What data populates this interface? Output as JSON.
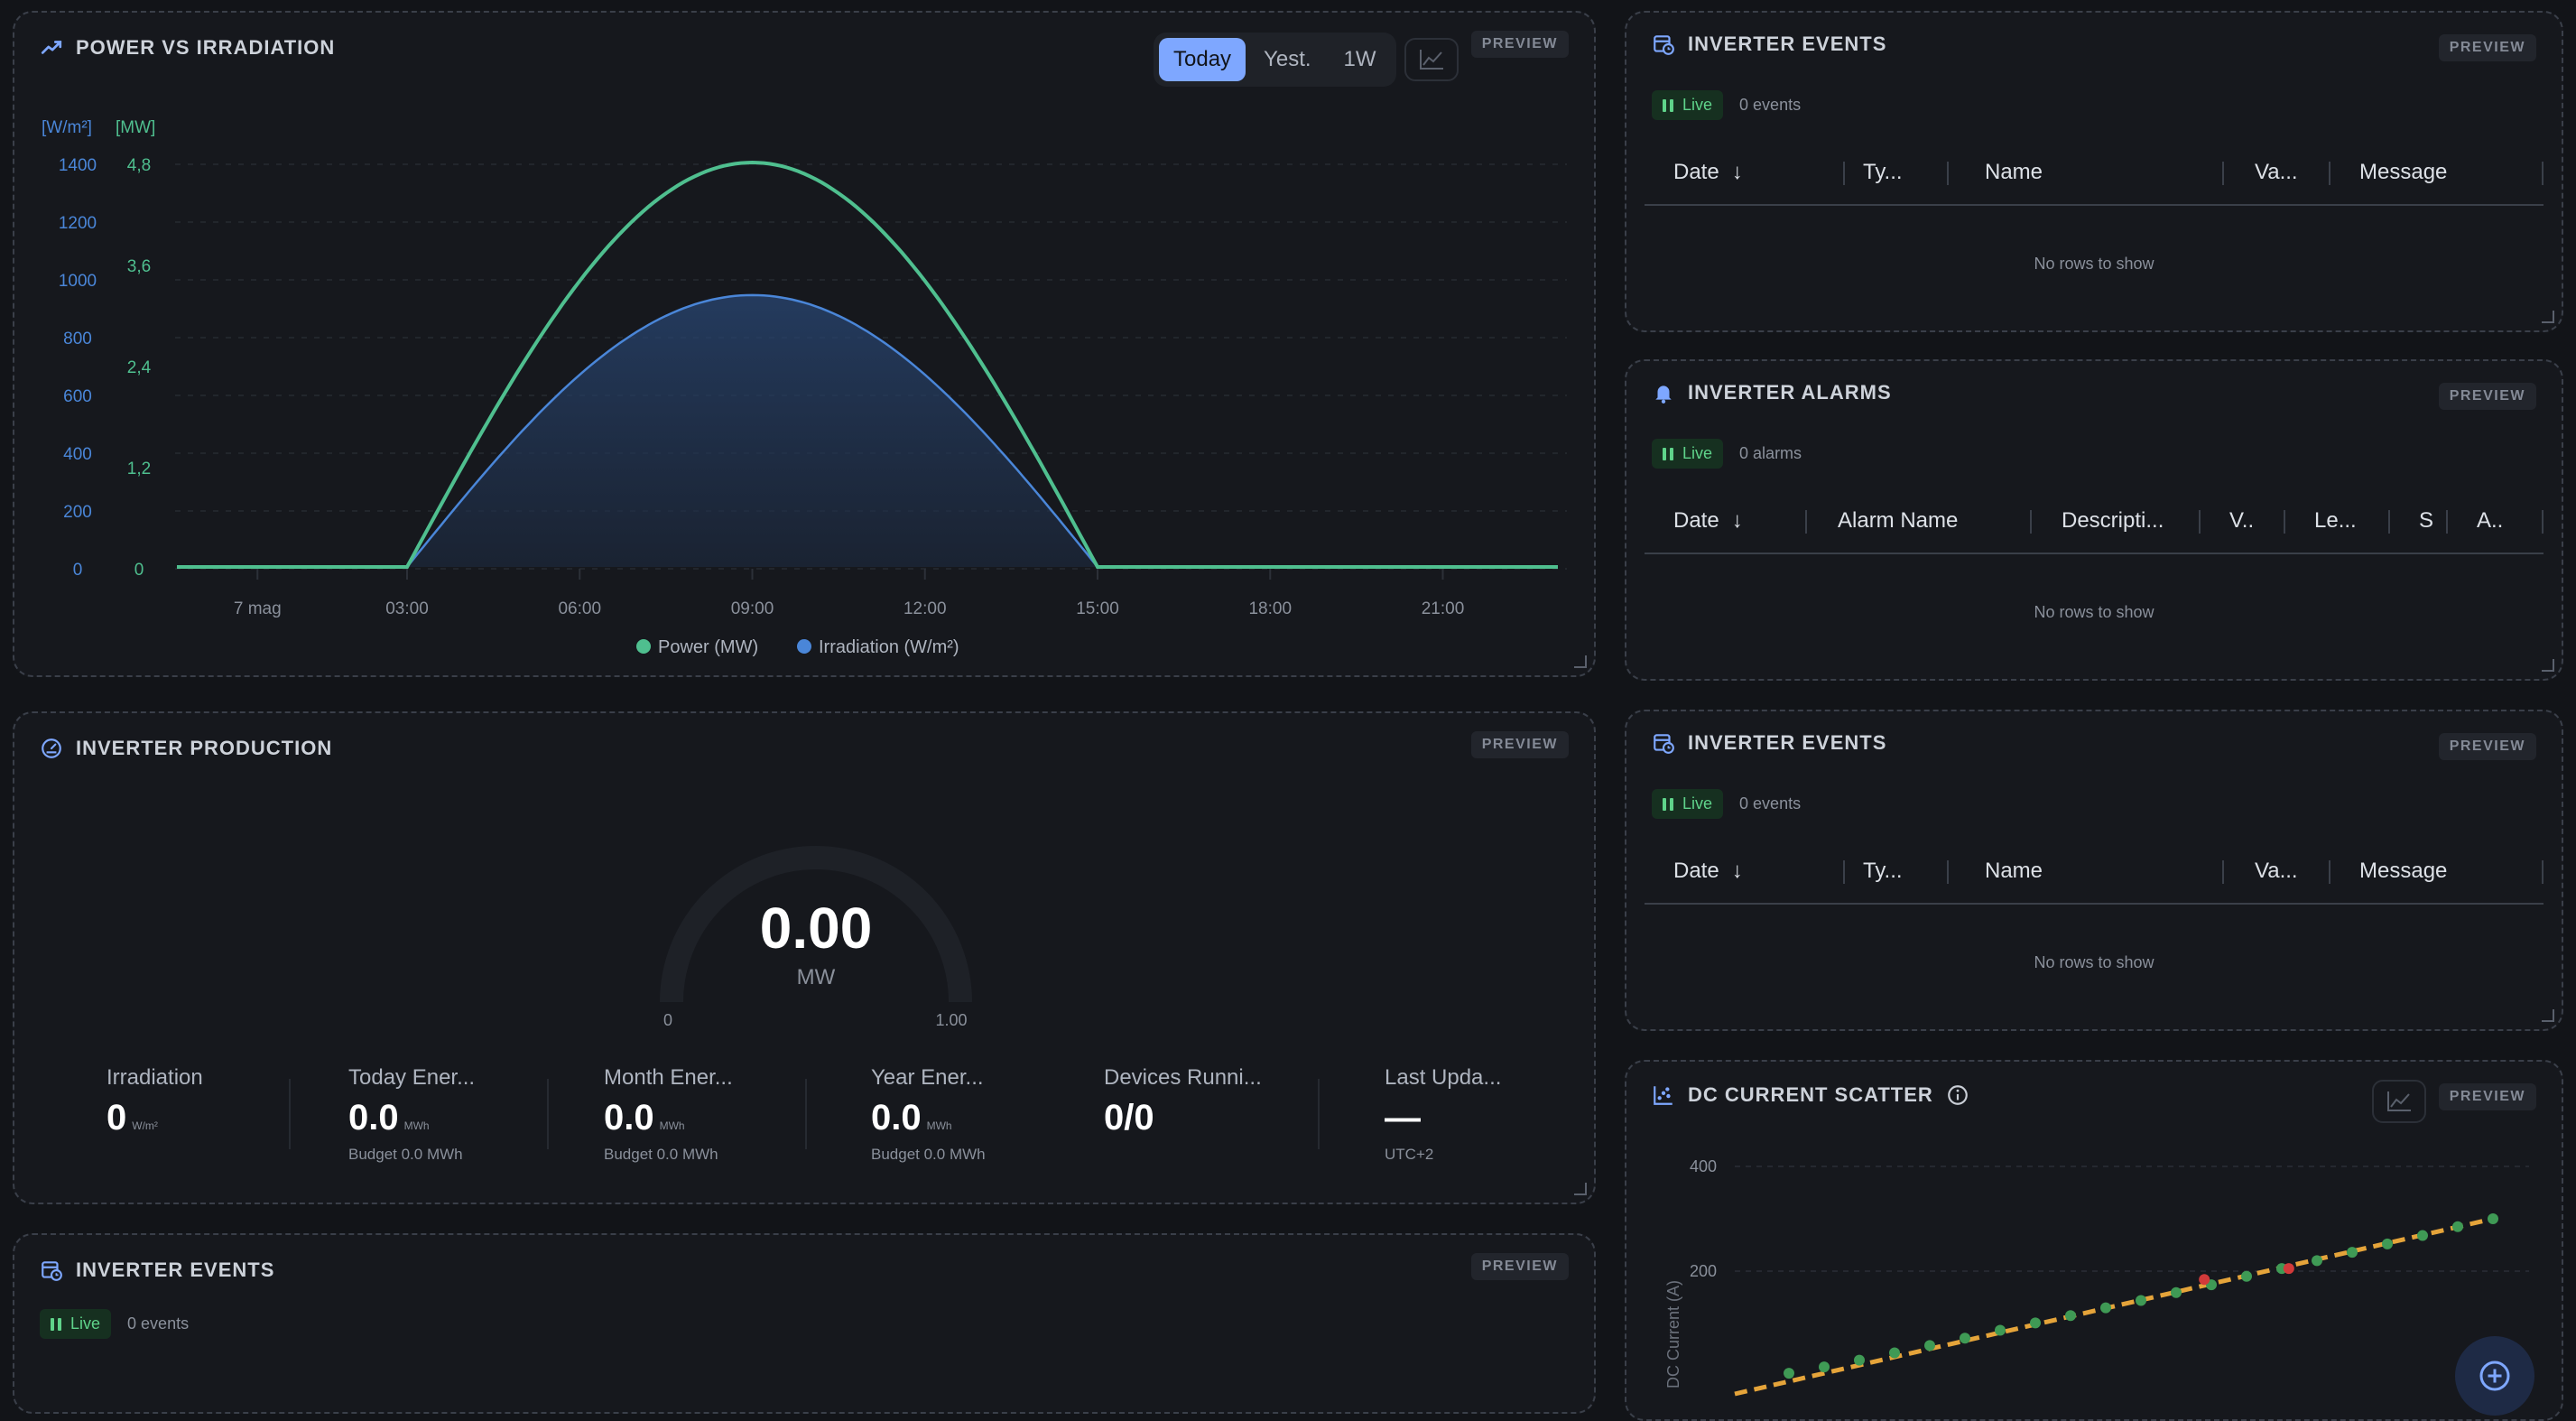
{
  "colors": {
    "accent": "#7ea7ff",
    "power": "#4fbf8f",
    "irradiation": "#4a86d8",
    "live": "#5fd38a"
  },
  "preview_label": "PREVIEW",
  "power_panel": {
    "title": "POWER VS IRRADIATION",
    "tabs": [
      "Today",
      "Yest.",
      "1W"
    ],
    "active_tab": "Today",
    "left_axis_unit": "[W/m²]",
    "right_axis_unit": "[MW]",
    "left_ticks": [
      "1400",
      "1200",
      "1000",
      "800",
      "600",
      "400",
      "200",
      "0"
    ],
    "right_ticks": [
      "4,8",
      "3,6",
      "2,4",
      "1,2",
      "0"
    ],
    "x_ticks": [
      "7 mag",
      "03:00",
      "06:00",
      "09:00",
      "12:00",
      "15:00",
      "18:00",
      "21:00"
    ],
    "legend": [
      "Power (MW)",
      "Irradiation (W/m²)"
    ]
  },
  "chart_data": [
    {
      "type": "line",
      "title": "POWER VS IRRADIATION",
      "x": [
        "00:00",
        "04:00",
        "05:00",
        "06:00",
        "07:00",
        "08:00",
        "09:00",
        "10:00",
        "11:00",
        "12:00",
        "13:00",
        "14:00",
        "15:00",
        "16:00",
        "20:00",
        "24:00"
      ],
      "x_ticks": [
        "7 mag",
        "03:00",
        "06:00",
        "09:00",
        "12:00",
        "15:00",
        "18:00",
        "21:00"
      ],
      "series": [
        {
          "name": "Power (MW)",
          "axis": "right",
          "values": [
            0,
            0,
            1.23,
            2.4,
            3.39,
            4.15,
            4.63,
            4.8,
            4.63,
            4.15,
            3.39,
            2.4,
            1.23,
            0,
            0,
            0
          ]
        },
        {
          "name": "Irradiation (W/m²)",
          "axis": "left",
          "values": [
            0,
            0,
            244,
            470,
            665,
            815,
            909,
            941,
            909,
            815,
            665,
            470,
            244,
            0,
            0,
            0
          ]
        }
      ],
      "ylim_left": [
        0,
        1400
      ],
      "ylim_right": [
        0,
        4.8
      ],
      "grid": true,
      "legend": "bottom"
    },
    {
      "type": "scatter",
      "title": "DC CURRENT SCATTER",
      "ylabel": "DC Current (A)",
      "y_ticks": [
        "400",
        "200"
      ],
      "ylim": [
        0,
        430
      ],
      "normal_points": [
        [
          0.0,
          5
        ],
        [
          0.05,
          17
        ],
        [
          0.1,
          30
        ],
        [
          0.15,
          44
        ],
        [
          0.2,
          58
        ],
        [
          0.25,
          72
        ],
        [
          0.3,
          87
        ],
        [
          0.35,
          101
        ],
        [
          0.4,
          115
        ],
        [
          0.45,
          130
        ],
        [
          0.5,
          144
        ],
        [
          0.55,
          159
        ],
        [
          0.6,
          174
        ],
        [
          0.65,
          190
        ],
        [
          0.7,
          205
        ],
        [
          0.75,
          220
        ],
        [
          0.8,
          236
        ],
        [
          0.85,
          252
        ],
        [
          0.9,
          268
        ],
        [
          0.95,
          285
        ],
        [
          1.0,
          300
        ]
      ],
      "outlier_points": [
        [
          0.59,
          184
        ],
        [
          0.71,
          205
        ]
      ],
      "trend": [
        [
          0.0,
          0
        ],
        [
          1.0,
          300
        ]
      ]
    }
  ],
  "production_panel": {
    "title": "INVERTER PRODUCTION",
    "gauge_value": "0.00",
    "gauge_unit": "MW",
    "gauge_min": "0",
    "gauge_max": "1.00",
    "gauge_fraction": 0,
    "stats": [
      {
        "label": "Irradiation",
        "value": "0",
        "unit": "W/m²",
        "sub": ""
      },
      {
        "label": "Today Ener...",
        "value": "0.0",
        "unit": "MWh",
        "sub": "Budget 0.0 MWh"
      },
      {
        "label": "Month Ener...",
        "value": "0.0",
        "unit": "MWh",
        "sub": "Budget 0.0 MWh"
      },
      {
        "label": "Year Ener...",
        "value": "0.0",
        "unit": "MWh",
        "sub": "Budget 0.0 MWh"
      },
      {
        "label": "Devices Runni...",
        "value": "0/0",
        "unit": "",
        "sub": ""
      },
      {
        "label": "Last Upda...",
        "value": "—",
        "unit": "",
        "sub": "UTC+2"
      }
    ]
  },
  "events_panel_bottom": {
    "title": "INVERTER EVENTS",
    "live": "Live",
    "count": "0 events"
  },
  "events_panel_1": {
    "title": "INVERTER EVENTS",
    "live": "Live",
    "count": "0 events",
    "columns": [
      "Date",
      "Ty...",
      "Name",
      "Va...",
      "Message"
    ],
    "empty": "No rows to show"
  },
  "alarms_panel": {
    "title": "INVERTER ALARMS",
    "live": "Live",
    "count": "0 alarms",
    "columns": [
      "Date",
      "Alarm Name",
      "Descripti...",
      "V..",
      "Le...",
      "S",
      "A.."
    ],
    "empty": "No rows to show"
  },
  "events_panel_2": {
    "title": "INVERTER EVENTS",
    "live": "Live",
    "count": "0 events",
    "columns": [
      "Date",
      "Ty...",
      "Name",
      "Va...",
      "Message"
    ],
    "empty": "No rows to show"
  },
  "scatter_panel": {
    "title": "DC CURRENT SCATTER",
    "ylabel": "DC Current (A)",
    "y_ticks": [
      "400",
      "200"
    ]
  }
}
